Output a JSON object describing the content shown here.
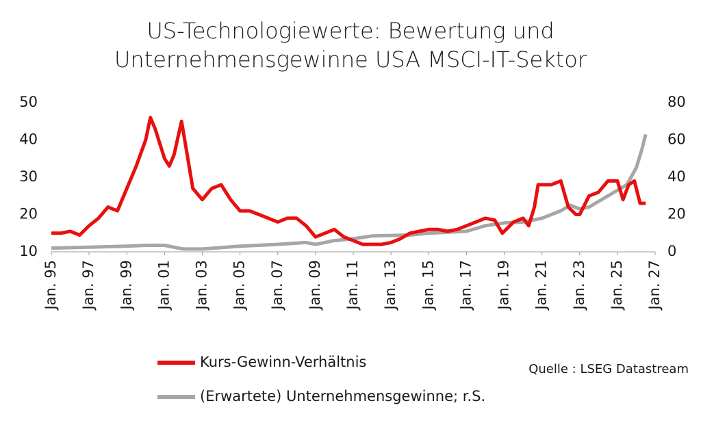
{
  "chart_data": {
    "type": "line",
    "title": "US-Technologiewerte: Bewertung und Unternehmensgewinne USA MSCI-IT-Sektor",
    "source": "Quelle : LSEG Datastream",
    "xlim": [
      1995,
      2027
    ],
    "xticks": [
      {
        "value": 1995,
        "label": "Jan. 95"
      },
      {
        "value": 1997,
        "label": "Jan. 97"
      },
      {
        "value": 1999,
        "label": "Jan. 99"
      },
      {
        "value": 2001,
        "label": "Jan. 01"
      },
      {
        "value": 2003,
        "label": "Jan. 03"
      },
      {
        "value": 2005,
        "label": "Jan. 05"
      },
      {
        "value": 2007,
        "label": "Jan. 07"
      },
      {
        "value": 2009,
        "label": "Jan. 09"
      },
      {
        "value": 2011,
        "label": "Jan. 11"
      },
      {
        "value": 2013,
        "label": "Jan. 13"
      },
      {
        "value": 2015,
        "label": "Jan. 15"
      },
      {
        "value": 2017,
        "label": "Jan. 17"
      },
      {
        "value": 2019,
        "label": "Jan. 19"
      },
      {
        "value": 2021,
        "label": "Jan. 21"
      },
      {
        "value": 2023,
        "label": "Jan. 23"
      },
      {
        "value": 2025,
        "label": "Jan. 25"
      },
      {
        "value": 2027,
        "label": "Jan. 27"
      }
    ],
    "ylim": [
      10,
      50
    ],
    "yticks": [
      10,
      20,
      30,
      40,
      50
    ],
    "y2lim": [
      0,
      80
    ],
    "y2ticks": [
      0,
      20,
      40,
      60,
      80
    ],
    "grid": false,
    "series": [
      {
        "name": "Kurs-Gewinn-Verhältnis",
        "color": "#e8100f",
        "x": [
          1995,
          1995.5,
          1996,
          1996.5,
          1997,
          1997.5,
          1998,
          1998.5,
          1999,
          1999.5,
          2000,
          2000.25,
          2000.5,
          2001,
          2001.25,
          2001.5,
          2001.9,
          2002.2,
          2002.5,
          2003,
          2003.5,
          2004,
          2004.5,
          2005,
          2005.5,
          2006,
          2006.5,
          2007,
          2007.5,
          2008,
          2008.5,
          2009,
          2009.5,
          2010,
          2010.5,
          2011,
          2011.5,
          2012,
          2012.5,
          2013,
          2013.5,
          2014,
          2014.5,
          2015,
          2015.5,
          2016,
          2016.5,
          2017,
          2017.5,
          2018,
          2018.5,
          2018.9,
          2019.5,
          2020,
          2020.3,
          2020.6,
          2020.8,
          2021,
          2021.5,
          2022,
          2022.4,
          2022.8,
          2023,
          2023.5,
          2024,
          2024.5,
          2025,
          2025.3,
          2025.6,
          2025.9,
          2026.2,
          2026.5
        ],
        "values": [
          15,
          15,
          15.5,
          14.5,
          17,
          19,
          22,
          21,
          27,
          33,
          40,
          46,
          43,
          35,
          33,
          36,
          45,
          36,
          27,
          24,
          27,
          28,
          24,
          21,
          21,
          20,
          19,
          18,
          19,
          19,
          17,
          14,
          15,
          16,
          14,
          13,
          12,
          12,
          12,
          12.5,
          13.5,
          15,
          15.5,
          16,
          16,
          15.5,
          16,
          17,
          18,
          19,
          18.5,
          15,
          18,
          19,
          17,
          22,
          28,
          28,
          28,
          29,
          22,
          20,
          20,
          25,
          26,
          29,
          29,
          24,
          28,
          29,
          23,
          23
        ]
      },
      {
        "name": "(Erwartete) Unternehmensgewinne; r.S.",
        "color": "#a6a6a6",
        "axis": "y2",
        "x": [
          1995,
          1997,
          1999,
          2000,
          2001,
          2002,
          2003,
          2005,
          2007,
          2008.5,
          2009,
          2010,
          2011,
          2012,
          2014,
          2015,
          2017,
          2018,
          2019,
          2020,
          2020.5,
          2021,
          2022,
          2022.5,
          2023,
          2023.5,
          2024,
          2025,
          2025.5,
          2026,
          2026.3,
          2026.5
        ],
        "values": [
          2,
          2.5,
          3,
          3.5,
          3.5,
          1.5,
          1.5,
          3,
          4,
          5,
          4,
          6,
          7,
          8.5,
          9,
          10,
          11,
          14,
          15.5,
          16,
          17,
          18,
          22,
          25,
          23,
          24,
          27,
          33,
          36,
          45,
          55,
          63
        ]
      }
    ]
  }
}
